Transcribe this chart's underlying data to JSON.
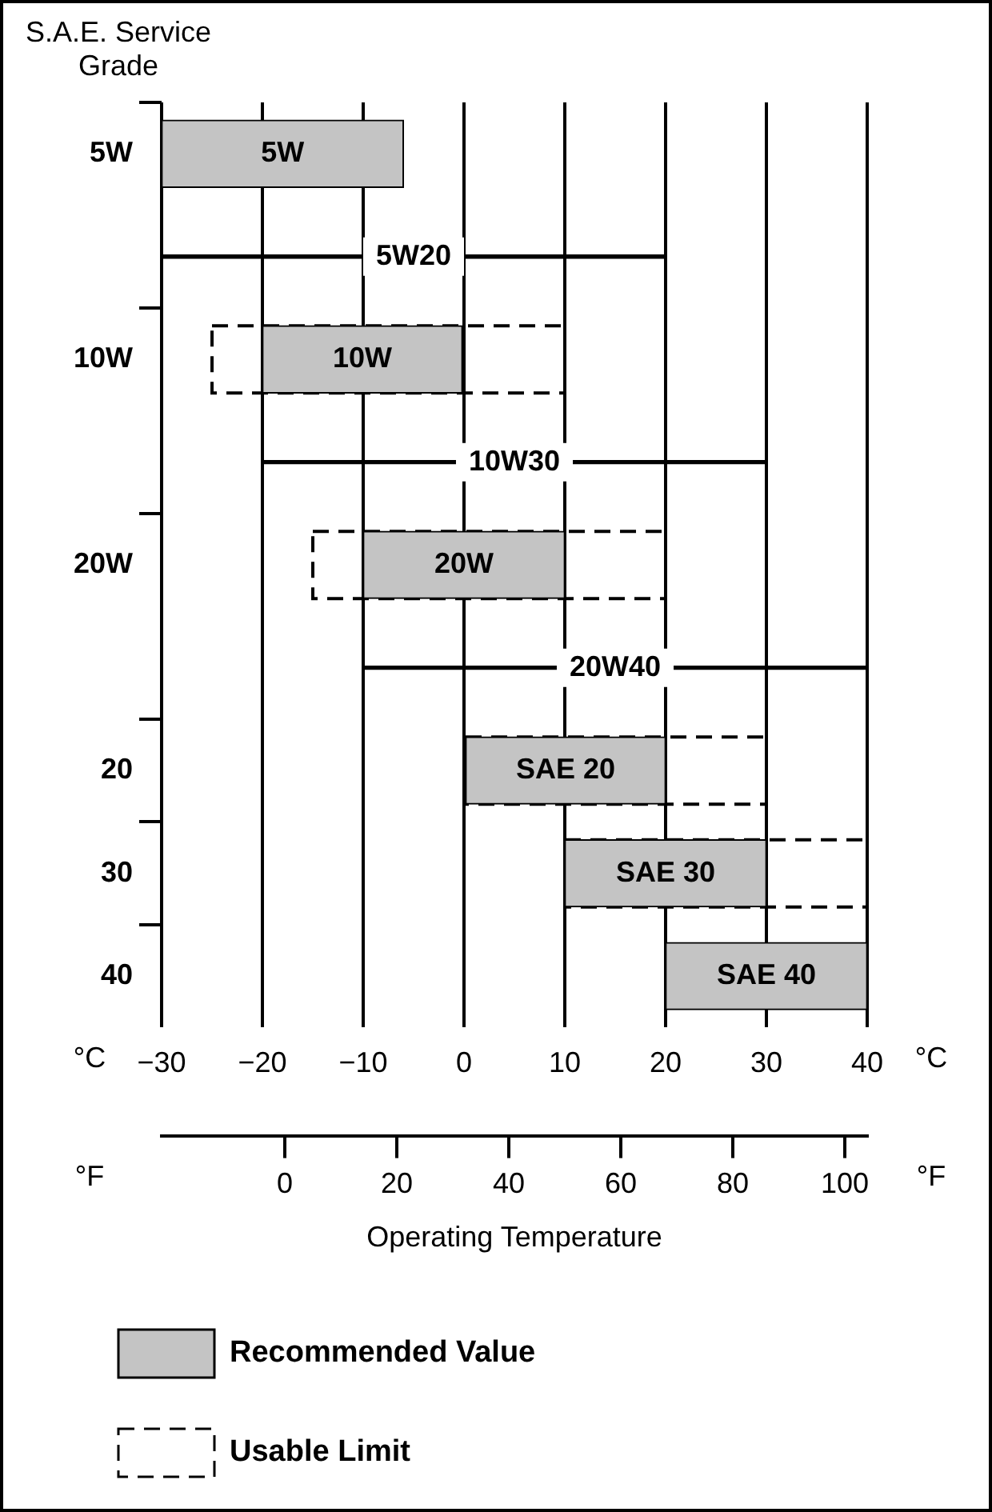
{
  "chart_data": {
    "type": "bar",
    "orientation": "horizontal",
    "ylabel": "S.A.E. Service Grade",
    "xlabel": "°C",
    "x2label": "°F",
    "annotations": [
      "Operating Temperature",
      "5W",
      "10W",
      "20W",
      "SAE 20",
      "SAE 30",
      "SAE 40"
    ],
    "categories": [
      "5W",
      null,
      "10W",
      null,
      "20W",
      null,
      "20",
      "30",
      "40"
    ],
    "xlim": [
      -30,
      40
    ],
    "xticks": [
      -30,
      -20,
      -10,
      0,
      10,
      20,
      30,
      40
    ],
    "x2lim": [
      -22,
      104
    ],
    "x2ticks": [
      0,
      20,
      40,
      60,
      80,
      100
    ],
    "grid": "x",
    "legend": "bottom",
    "series": [
      {
        "name": "Usable Limit",
        "color": "#000000",
        "line_style": "dashed",
        "base": [
          null,
          null,
          -25,
          null,
          -15,
          null,
          0,
          10,
          null
        ],
        "values": [
          null,
          null,
          35,
          null,
          35,
          null,
          30,
          30,
          null
        ]
      },
      {
        "name": "Recommended Value",
        "color": "#c4c4c4",
        "line_style": "solid",
        "base": [
          -30,
          null,
          -20,
          null,
          -10,
          null,
          0,
          10,
          20
        ],
        "values": [
          24,
          null,
          20,
          null,
          20,
          null,
          20,
          20,
          20
        ]
      },
      {
        "name": "5W20",
        "color": "#000000",
        "base": [
          null,
          -30,
          null,
          null,
          null,
          null,
          null,
          null,
          null
        ],
        "values": [
          null,
          50,
          null,
          null,
          null,
          null,
          null,
          null,
          null
        ]
      },
      {
        "name": "10W30",
        "color": "#000000",
        "base": [
          null,
          null,
          null,
          -20,
          null,
          null,
          null,
          null,
          null
        ],
        "values": [
          null,
          null,
          null,
          50,
          null,
          null,
          null,
          null,
          null
        ]
      },
      {
        "name": "20W40",
        "color": "#000000",
        "base": [
          null,
          null,
          null,
          null,
          null,
          -10,
          null,
          null,
          null
        ],
        "values": [
          null,
          null,
          null,
          null,
          null,
          50,
          null,
          null,
          null
        ]
      }
    ]
  }
}
